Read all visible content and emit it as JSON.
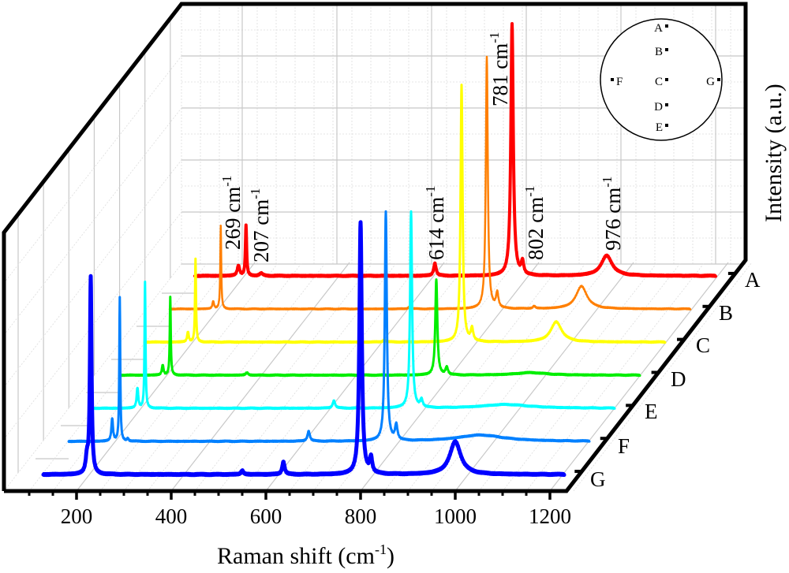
{
  "chart_data": {
    "type": "line",
    "subtype": "3d-waterfall",
    "title": "",
    "xlabel": "Raman shift (cm",
    "xlabel_sup": "-1",
    "xlabel_tail": ")",
    "ylabel": "Intensity (a.u.)",
    "xlim": [
      130,
      1230
    ],
    "x_ticks": [
      200,
      400,
      600,
      800,
      1000,
      1200
    ],
    "x_tick_labels": [
      "200",
      "400",
      "600",
      "800",
      "1000",
      "1200"
    ],
    "depth_ticks": [
      "A",
      "B",
      "C",
      "D",
      "E",
      "F",
      "G"
    ],
    "ylim": [
      0,
      100
    ],
    "grid": true,
    "legend": "none",
    "series": [
      {
        "name": "A",
        "color": "#ff0000",
        "line_width": 4,
        "peaks": [
          [
            222,
            4,
            3
          ],
          [
            238,
            20,
            1.5
          ],
          [
            270,
            1,
            4
          ],
          [
            637,
            5,
            3
          ],
          [
            800,
            100,
            3
          ],
          [
            822,
            5,
            3
          ],
          [
            1000,
            8,
            14
          ]
        ]
      },
      {
        "name": "B",
        "color": "#ff7f00",
        "line_width": 2.5,
        "peaks": [
          [
            222,
            3,
            2
          ],
          [
            238,
            33,
            1.2
          ],
          [
            637,
            1,
            3
          ],
          [
            800,
            100,
            2.5
          ],
          [
            822,
            6,
            3
          ],
          [
            900,
            1,
            3
          ],
          [
            1000,
            9,
            14
          ]
        ]
      },
      {
        "name": "C",
        "color": "#ffff00",
        "line_width": 3,
        "peaks": [
          [
            222,
            4,
            2
          ],
          [
            238,
            33,
            1.2
          ],
          [
            637,
            1,
            3
          ],
          [
            800,
            102,
            2.5
          ],
          [
            822,
            5,
            3
          ],
          [
            1000,
            8,
            14
          ]
        ]
      },
      {
        "name": "D",
        "color": "#00ee00",
        "line_width": 3,
        "peaks": [
          [
            222,
            4,
            2
          ],
          [
            238,
            31,
            1.2
          ],
          [
            400,
            1,
            3
          ],
          [
            800,
            38,
            2.5
          ],
          [
            822,
            3,
            3
          ],
          [
            1000,
            1,
            40
          ]
        ]
      },
      {
        "name": "E",
        "color": "#00ffff",
        "line_width": 3,
        "peaks": [
          [
            222,
            8,
            2
          ],
          [
            238,
            50,
            1.2
          ],
          [
            637,
            3,
            3
          ],
          [
            800,
            78,
            2.5
          ],
          [
            822,
            3,
            3
          ],
          [
            1000,
            1.5,
            60
          ]
        ]
      },
      {
        "name": "F",
        "color": "#0080ff",
        "line_width": 3,
        "peaks": [
          [
            222,
            9,
            2
          ],
          [
            238,
            57,
            1.2
          ],
          [
            255,
            1,
            2
          ],
          [
            637,
            4,
            3
          ],
          [
            800,
            91,
            2.5
          ],
          [
            822,
            6,
            3
          ],
          [
            1000,
            2.5,
            60
          ]
        ]
      },
      {
        "name": "G",
        "color": "#0000ff",
        "line_width": 5,
        "peaks": [
          [
            222,
            6,
            3
          ],
          [
            230,
            78,
            2
          ],
          [
            550,
            1.5,
            3
          ],
          [
            637,
            5,
            3
          ],
          [
            800,
            100,
            3
          ],
          [
            822,
            6,
            3
          ],
          [
            1000,
            13,
            14
          ]
        ]
      }
    ],
    "annotations": [
      {
        "text": "269 cm",
        "sup": "-1"
      },
      {
        "text": "207 cm",
        "sup": "-1"
      },
      {
        "text": "614 cm",
        "sup": "-1"
      },
      {
        "text": "781 cm",
        "sup": "-1"
      },
      {
        "text": "802 cm",
        "sup": "-1"
      },
      {
        "text": "976 cm",
        "sup": "-1"
      }
    ],
    "inset": {
      "description": "sample measurement positions on circular wafer",
      "points": [
        {
          "label": "A"
        },
        {
          "label": "B"
        },
        {
          "label": "C"
        },
        {
          "label": "D"
        },
        {
          "label": "E"
        },
        {
          "label": "F"
        },
        {
          "label": "G"
        }
      ]
    }
  }
}
